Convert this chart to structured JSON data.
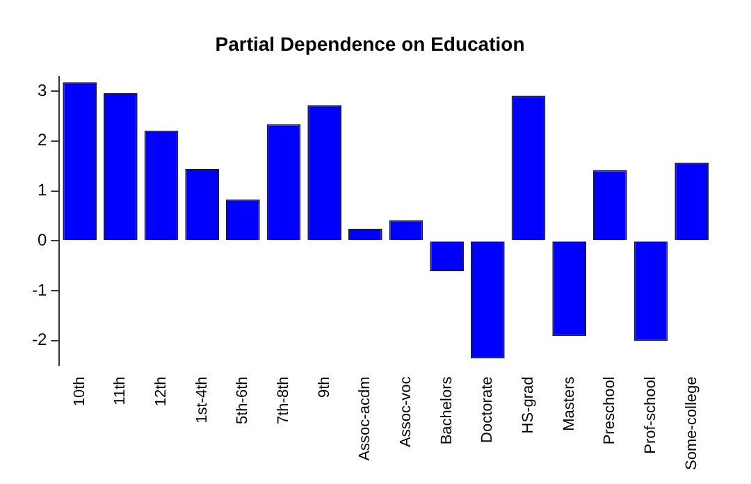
{
  "chart_data": {
    "type": "bar",
    "title": "Partial Dependence on Education",
    "categories": [
      "10th",
      "11th",
      "12th",
      "1st-4th",
      "5th-6th",
      "7th-8th",
      "9th",
      "Assoc-acdm",
      "Assoc-voc",
      "Bachelors",
      "Doctorate",
      "HS-grad",
      "Masters",
      "Preschool",
      "Prof-school",
      "Some-college"
    ],
    "values": [
      3.18,
      2.96,
      2.21,
      1.44,
      0.83,
      2.34,
      2.72,
      0.24,
      0.41,
      -0.61,
      -2.36,
      2.91,
      -1.91,
      1.42,
      -2.01,
      1.57
    ],
    "color": "#0000ff",
    "ylim": [
      -2.5,
      3.3
    ],
    "yticks": [
      -2,
      -1,
      0,
      1,
      2,
      3
    ],
    "grid": false,
    "legend": false
  }
}
